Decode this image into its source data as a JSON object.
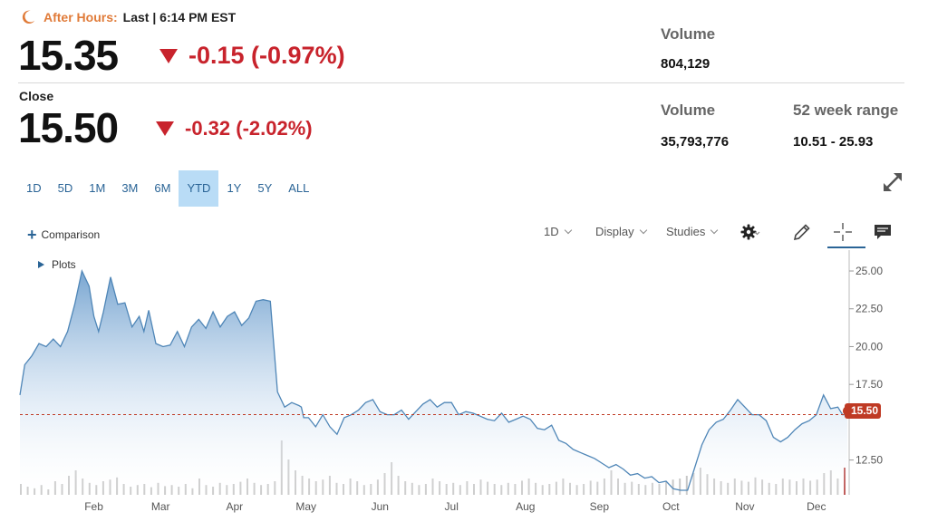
{
  "after_hours": {
    "label": "After Hours:",
    "status": "Last | 6:14 PM EST",
    "price": "15.35",
    "change": "-0.15 (-0.97%)",
    "volume_label": "Volume",
    "volume": "804,129",
    "icon": "moon-icon"
  },
  "close": {
    "label": "Close",
    "price": "15.50",
    "change": "-0.32 (-2.02%)",
    "volume_label": "Volume",
    "volume": "35,793,776",
    "range_label": "52 week range",
    "range": "10.51 - 25.93"
  },
  "ranges": [
    {
      "label": "1D",
      "active": false
    },
    {
      "label": "5D",
      "active": false
    },
    {
      "label": "1M",
      "active": false
    },
    {
      "label": "3M",
      "active": false
    },
    {
      "label": "6M",
      "active": false
    },
    {
      "label": "YTD",
      "active": true
    },
    {
      "label": "1Y",
      "active": false
    },
    {
      "label": "5Y",
      "active": false
    },
    {
      "label": "ALL",
      "active": false
    }
  ],
  "toolbar": {
    "comparison": "Comparison",
    "plots": "Plots",
    "interval": "1D",
    "display": "Display",
    "studies": "Studies"
  },
  "colors": {
    "negative": "#c8232c",
    "accent": "#2a6496",
    "after_hours": "#e07b39",
    "line": "#4f86b7",
    "price_tag": "#bf3a24"
  },
  "chart_data": {
    "type": "area",
    "y_ticks": [
      "25.00",
      "22.50",
      "20.00",
      "17.50",
      "12.50"
    ],
    "y_tick_values": [
      25,
      22.5,
      20,
      17.5,
      12.5
    ],
    "ylim": [
      10.2,
      25.9
    ],
    "x_ticks": [
      "Feb",
      "Mar",
      "Apr",
      "May",
      "Jun",
      "Jul",
      "Aug",
      "Sep",
      "Oct",
      "Nov",
      "Dec"
    ],
    "x_tick_days": [
      31,
      59,
      90,
      120,
      151,
      181,
      212,
      243,
      273,
      304,
      334
    ],
    "last_price": 15.5,
    "last_price_label": "15.50",
    "series": [
      {
        "x": [
          0,
          2,
          5,
          8,
          11,
          14,
          17,
          20,
          23,
          26,
          29,
          31,
          33,
          35,
          38,
          41,
          44,
          47,
          50,
          52,
          54,
          57,
          60,
          63,
          66,
          69,
          72,
          75,
          78,
          81,
          84,
          87,
          90,
          93,
          96,
          99,
          102,
          105,
          108,
          111,
          114,
          117,
          118,
          119,
          121,
          124,
          127,
          130,
          133,
          136,
          139,
          142,
          145,
          148,
          151,
          154,
          157,
          160,
          163,
          166,
          169,
          172,
          175,
          178,
          181,
          184,
          187,
          190,
          193,
          196,
          199,
          202,
          205,
          208,
          211,
          214,
          217,
          220,
          223,
          226,
          229,
          232,
          235,
          238,
          241,
          244,
          247,
          250,
          253,
          256,
          259,
          262,
          265,
          268,
          271,
          274,
          277,
          280,
          283,
          286,
          289,
          292,
          295,
          298,
          301,
          304,
          307,
          310,
          313,
          316,
          319,
          322,
          325,
          328,
          331,
          334,
          337,
          340,
          343,
          345,
          347
        ],
        "y": [
          16.8,
          18.8,
          19.4,
          20.2,
          20.0,
          20.5,
          20.0,
          21.0,
          22.8,
          25.0,
          24.0,
          22.0,
          21.0,
          22.3,
          24.6,
          22.8,
          22.9,
          21.3,
          22.0,
          21.0,
          22.4,
          20.2,
          20.0,
          20.1,
          21.0,
          20.0,
          21.3,
          21.8,
          21.2,
          22.3,
          21.3,
          22.0,
          22.3,
          21.4,
          21.9,
          23.0,
          23.1,
          23.0,
          17.0,
          16.0,
          16.3,
          16.1,
          16.0,
          15.3,
          15.3,
          14.7,
          15.5,
          14.7,
          14.2,
          15.3,
          15.5,
          15.8,
          16.3,
          16.5,
          15.7,
          15.5,
          15.5,
          15.8,
          15.2,
          15.7,
          16.2,
          16.5,
          16.0,
          16.3,
          16.3,
          15.5,
          15.7,
          15.6,
          15.4,
          15.2,
          15.1,
          15.6,
          15.0,
          15.2,
          15.4,
          15.2,
          14.6,
          14.5,
          14.8,
          13.8,
          13.6,
          13.2,
          13.0,
          12.8,
          12.6,
          12.3,
          12.0,
          12.2,
          11.9,
          11.5,
          11.6,
          11.3,
          11.4,
          11.0,
          11.1,
          10.6,
          10.5,
          10.5,
          12.0,
          13.5,
          14.5,
          15.0,
          15.2,
          15.8,
          16.5,
          16.0,
          15.5,
          15.5,
          15.1,
          14.0,
          13.7,
          14.0,
          14.5,
          14.9,
          15.1,
          15.5,
          16.8,
          15.9,
          16.0,
          15.5,
          15.5
        ]
      }
    ],
    "volume": [
      0.2,
      0.15,
      0.12,
      0.18,
      0.1,
      0.25,
      0.2,
      0.35,
      0.45,
      0.3,
      0.22,
      0.18,
      0.25,
      0.28,
      0.32,
      0.2,
      0.15,
      0.18,
      0.2,
      0.14,
      0.22,
      0.16,
      0.18,
      0.15,
      0.2,
      0.12,
      0.3,
      0.18,
      0.15,
      0.22,
      0.18,
      0.2,
      0.24,
      0.3,
      0.22,
      0.18,
      0.2,
      0.25,
      1.0,
      0.65,
      0.45,
      0.35,
      0.3,
      0.25,
      0.28,
      0.35,
      0.22,
      0.2,
      0.3,
      0.25,
      0.18,
      0.2,
      0.28,
      0.4,
      0.6,
      0.35,
      0.25,
      0.22,
      0.18,
      0.2,
      0.3,
      0.25,
      0.2,
      0.22,
      0.18,
      0.25,
      0.2,
      0.28,
      0.24,
      0.2,
      0.18,
      0.22,
      0.2,
      0.26,
      0.3,
      0.22,
      0.18,
      0.2,
      0.24,
      0.3,
      0.22,
      0.18,
      0.2,
      0.26,
      0.24,
      0.3,
      0.45,
      0.3,
      0.22,
      0.24,
      0.2,
      0.18,
      0.22,
      0.2,
      0.25,
      0.28,
      0.3,
      0.35,
      0.4,
      0.5,
      0.38,
      0.3,
      0.25,
      0.22,
      0.3,
      0.26,
      0.24,
      0.32,
      0.28,
      0.22,
      0.2,
      0.3,
      0.28,
      0.25,
      0.3,
      0.26,
      0.28,
      0.4,
      0.45,
      0.3,
      0.5
    ]
  }
}
